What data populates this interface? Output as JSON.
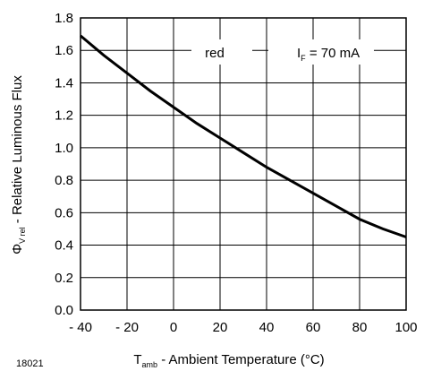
{
  "figure_id": "18021",
  "chart_data": {
    "type": "line",
    "x_label_main": "T",
    "x_label_sub": "amb",
    "x_label_rest": " - Ambient Temperature (°C)",
    "y_label_main": "Φ",
    "y_label_sub": "V rel",
    "y_label_rest": " - Relative Luminous Flux",
    "x_ticks": [
      "- 40",
      "- 20",
      "0",
      "20",
      "40",
      "60",
      "80",
      "100"
    ],
    "y_ticks": [
      "0.0",
      "0.2",
      "0.4",
      "0.6",
      "0.8",
      "1.0",
      "1.2",
      "1.4",
      "1.6",
      "1.8"
    ],
    "xlim": [
      -40,
      100
    ],
    "ylim": [
      0,
      1.8
    ],
    "grid": true,
    "annotations": {
      "color_label": "red",
      "current_main": "I",
      "current_sub": "F",
      "current_rest": " = 70 mA"
    },
    "series": [
      {
        "x": [
          -40,
          -30,
          -20,
          -10,
          0,
          10,
          20,
          30,
          40,
          50,
          60,
          70,
          80,
          90,
          100
        ],
        "y": [
          1.69,
          1.57,
          1.46,
          1.35,
          1.25,
          1.15,
          1.06,
          0.97,
          0.88,
          0.8,
          0.72,
          0.64,
          0.56,
          0.5,
          0.45
        ]
      }
    ]
  }
}
